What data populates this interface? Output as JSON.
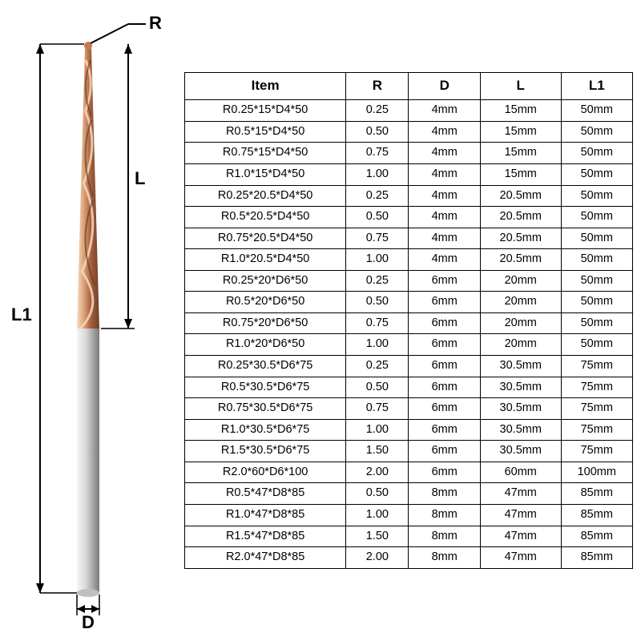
{
  "diagram": {
    "labels": {
      "R": "R",
      "L": "L",
      "L1": "L1",
      "D": "D"
    },
    "label_fontsize": 22,
    "colors": {
      "tip_copper_light": "#e8b896",
      "tip_copper_dark": "#8b5a3c",
      "shank_light": "#e5e5e5",
      "shank_dark": "#888888",
      "line": "#000000",
      "bg": "#ffffff"
    },
    "geometry": {
      "total_height": 720,
      "flute_length": 360,
      "shank_width": 24,
      "tip_radius": 4
    }
  },
  "table": {
    "columns": [
      "Item",
      "R",
      "D",
      "L",
      "L1"
    ],
    "col_widths_pct": [
      36,
      14,
      16,
      18,
      16
    ],
    "header_fontsize": 17,
    "cell_fontsize": 14.5,
    "border_color": "#000000",
    "rows": [
      [
        "R0.25*15*D4*50",
        "0.25",
        "4mm",
        "15mm",
        "50mm"
      ],
      [
        "R0.5*15*D4*50",
        "0.50",
        "4mm",
        "15mm",
        "50mm"
      ],
      [
        "R0.75*15*D4*50",
        "0.75",
        "4mm",
        "15mm",
        "50mm"
      ],
      [
        "R1.0*15*D4*50",
        "1.00",
        "4mm",
        "15mm",
        "50mm"
      ],
      [
        "R0.25*20.5*D4*50",
        "0.25",
        "4mm",
        "20.5mm",
        "50mm"
      ],
      [
        "R0.5*20.5*D4*50",
        "0.50",
        "4mm",
        "20.5mm",
        "50mm"
      ],
      [
        "R0.75*20.5*D4*50",
        "0.75",
        "4mm",
        "20.5mm",
        "50mm"
      ],
      [
        "R1.0*20.5*D4*50",
        "1.00",
        "4mm",
        "20.5mm",
        "50mm"
      ],
      [
        "R0.25*20*D6*50",
        "0.25",
        "6mm",
        "20mm",
        "50mm"
      ],
      [
        "R0.5*20*D6*50",
        "0.50",
        "6mm",
        "20mm",
        "50mm"
      ],
      [
        "R0.75*20*D6*50",
        "0.75",
        "6mm",
        "20mm",
        "50mm"
      ],
      [
        "R1.0*20*D6*50",
        "1.00",
        "6mm",
        "20mm",
        "50mm"
      ],
      [
        "R0.25*30.5*D6*75",
        "0.25",
        "6mm",
        "30.5mm",
        "75mm"
      ],
      [
        "R0.5*30.5*D6*75",
        "0.50",
        "6mm",
        "30.5mm",
        "75mm"
      ],
      [
        "R0.75*30.5*D6*75",
        "0.75",
        "6mm",
        "30.5mm",
        "75mm"
      ],
      [
        "R1.0*30.5*D6*75",
        "1.00",
        "6mm",
        "30.5mm",
        "75mm"
      ],
      [
        "R1.5*30.5*D6*75",
        "1.50",
        "6mm",
        "30.5mm",
        "75mm"
      ],
      [
        "R2.0*60*D6*100",
        "2.00",
        "6mm",
        "60mm",
        "100mm"
      ],
      [
        "R0.5*47*D8*85",
        "0.50",
        "8mm",
        "47mm",
        "85mm"
      ],
      [
        "R1.0*47*D8*85",
        "1.00",
        "8mm",
        "47mm",
        "85mm"
      ],
      [
        "R1.5*47*D8*85",
        "1.50",
        "8mm",
        "47mm",
        "85mm"
      ],
      [
        "R2.0*47*D8*85",
        "2.00",
        "8mm",
        "47mm",
        "85mm"
      ]
    ]
  }
}
